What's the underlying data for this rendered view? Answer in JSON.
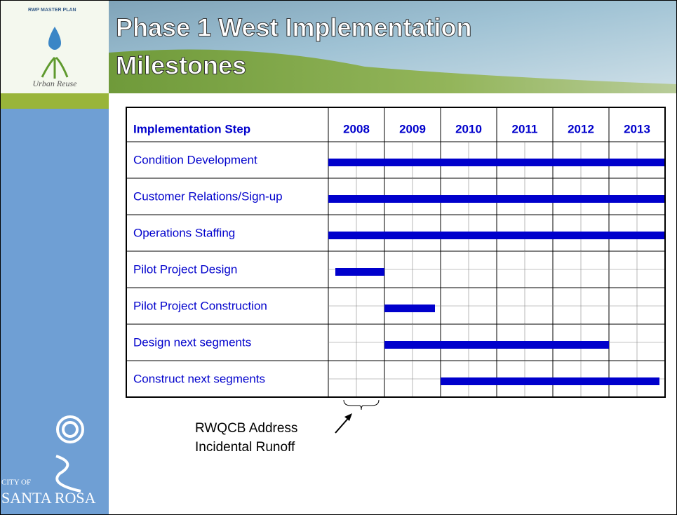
{
  "header": {
    "title_lines": [
      "Phase 1 West Implementation",
      "Milestones"
    ]
  },
  "logo": {
    "top": "RWP MASTER PLAN",
    "bottom": "Urban Reuse"
  },
  "city_logo": {
    "line1": "CITY OF",
    "line2": "SANTA ROSA"
  },
  "table": {
    "header": "Implementation Step",
    "years": [
      2008,
      2009,
      2010,
      2011,
      2012,
      2013
    ],
    "rows": [
      {
        "label": "Condition Development",
        "start": 2008,
        "end": 2014
      },
      {
        "label": "Customer Relations/Sign-up",
        "start": 2008,
        "end": 2014
      },
      {
        "label": "Operations Staffing",
        "start": 2008,
        "end": 2014
      },
      {
        "label": "Pilot Project Design",
        "start": 2008.125,
        "end": 2009
      },
      {
        "label": "Pilot Project Construction",
        "start": 2009,
        "end": 2009.9
      },
      {
        "label": "Design next segments",
        "start": 2009,
        "end": 2013
      },
      {
        "label": "Construct next segments",
        "start": 2010,
        "end": 2013.9
      }
    ]
  },
  "annotation": [
    "RWQCB Address",
    "Incidental Runoff"
  ]
}
